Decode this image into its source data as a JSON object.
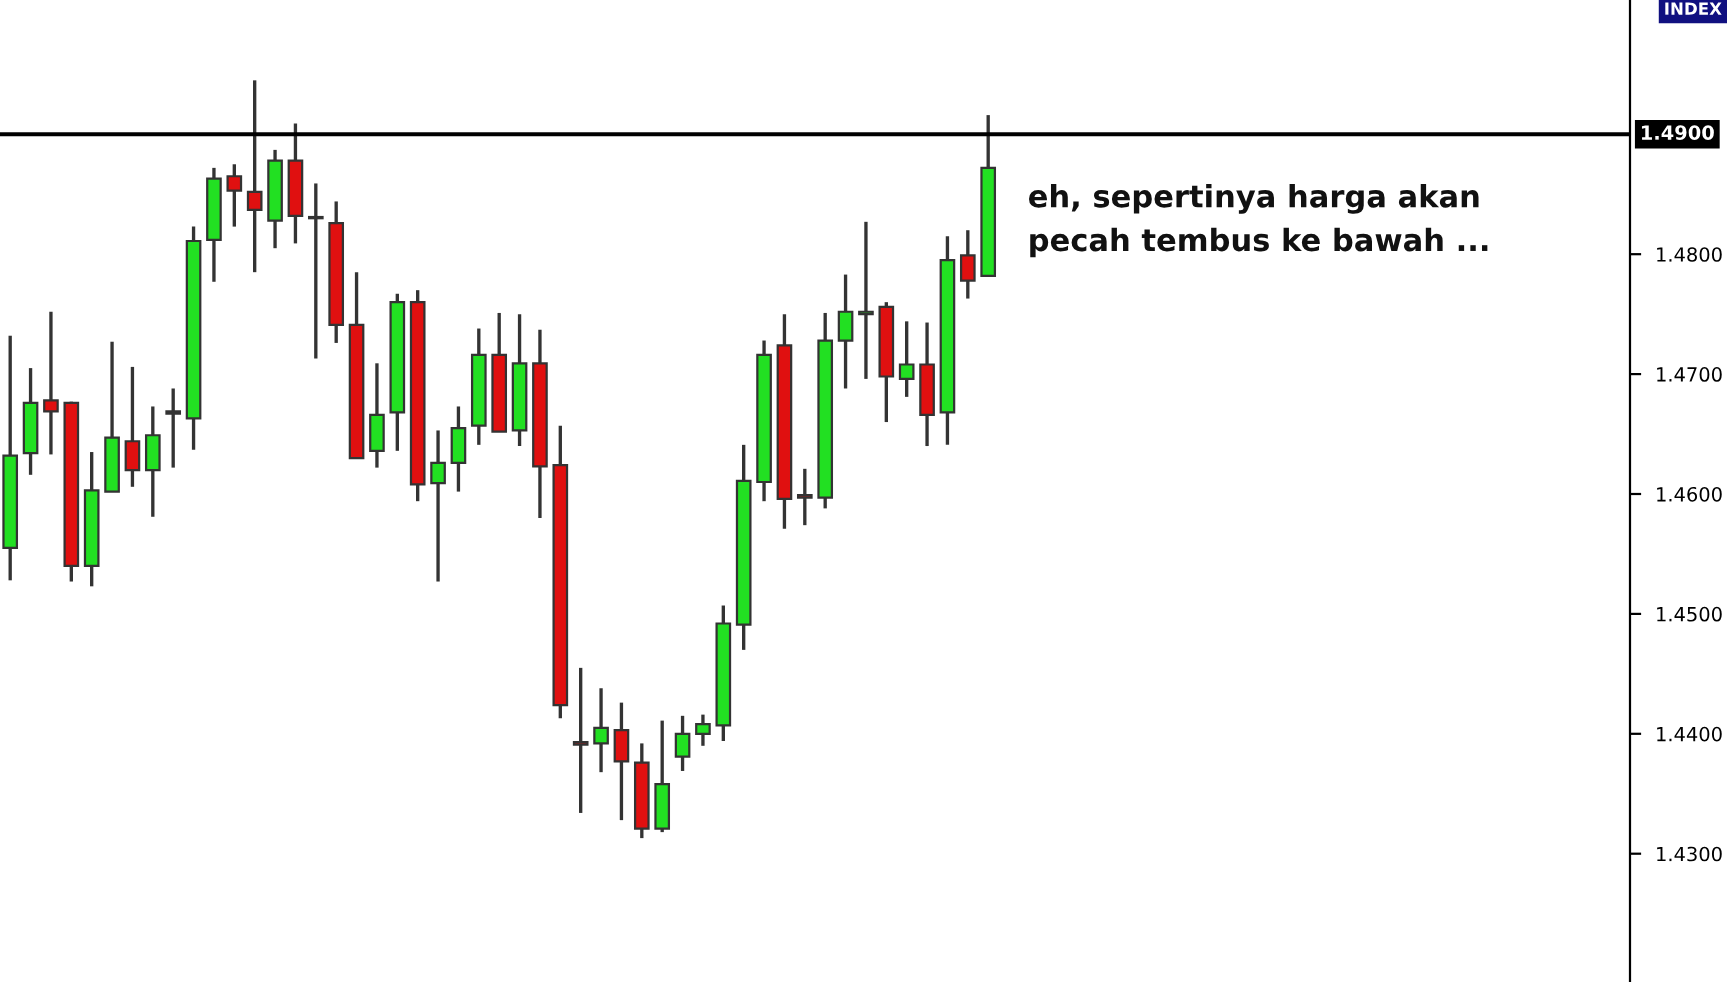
{
  "chart_data": {
    "type": "candlestick",
    "categories": [
      null,
      null,
      null,
      null,
      null,
      null,
      null,
      null,
      null,
      null,
      null,
      null,
      null,
      null,
      null,
      null,
      null,
      null,
      null,
      null,
      null,
      null,
      null,
      null,
      null,
      null,
      null,
      null,
      null,
      null,
      null,
      null,
      null,
      null,
      null,
      null,
      null,
      null,
      null,
      null,
      null,
      null,
      null,
      null,
      null,
      null,
      null,
      null,
      null,
      null,
      null,
      null,
      null,
      null,
      null,
      null,
      null,
      null,
      null,
      null,
      null,
      null,
      null,
      null,
      null,
      null,
      null,
      null,
      null,
      null,
      null,
      null,
      null,
      null,
      null,
      null,
      null,
      null,
      null,
      null
    ],
    "ohlc": [
      [
        1.4555,
        1.4732,
        1.4528,
        1.4632
      ],
      [
        1.4634,
        1.4705,
        1.4616,
        1.4676
      ],
      [
        1.4678,
        1.4752,
        1.4633,
        1.4669
      ],
      [
        1.4676,
        1.4677,
        1.4527,
        1.454
      ],
      [
        1.454,
        1.4635,
        1.4523,
        1.4603
      ],
      [
        1.4602,
        1.4727,
        1.4602,
        1.4647
      ],
      [
        1.4644,
        1.4706,
        1.4606,
        1.462
      ],
      [
        1.462,
        1.4673,
        1.4581,
        1.4649
      ],
      [
        1.4669,
        1.4688,
        1.4622,
        1.4667
      ],
      [
        1.4663,
        1.4823,
        1.4637,
        1.4811
      ],
      [
        1.4812,
        1.4872,
        1.4777,
        1.4863
      ],
      [
        1.4865,
        1.4875,
        1.4823,
        1.4853
      ],
      [
        1.4852,
        1.4945,
        1.4785,
        1.4837
      ],
      [
        1.4828,
        1.4887,
        1.4805,
        1.4878
      ],
      [
        1.4878,
        1.4909,
        1.4809,
        1.4832
      ],
      [
        1.4831,
        1.4859,
        1.4713,
        1.483
      ],
      [
        1.4826,
        1.4844,
        1.4726,
        1.4741
      ],
      [
        1.4741,
        1.4785,
        1.463,
        1.463
      ],
      [
        1.4636,
        1.4709,
        1.4622,
        1.4666
      ],
      [
        1.4668,
        1.4767,
        1.4636,
        1.476
      ],
      [
        1.476,
        1.477,
        1.4594,
        1.4608
      ],
      [
        1.4609,
        1.4653,
        1.4527,
        1.4626
      ],
      [
        1.4626,
        1.4673,
        1.4602,
        1.4655
      ],
      [
        1.4657,
        1.4738,
        1.4641,
        1.4716
      ],
      [
        1.4716,
        1.4751,
        1.4652,
        1.4652
      ],
      [
        1.4653,
        1.475,
        1.464,
        1.4709
      ],
      [
        1.4709,
        1.4737,
        1.458,
        1.4623
      ],
      [
        1.4624,
        1.4657,
        1.4413,
        1.4424
      ],
      [
        1.4393,
        1.4455,
        1.4334,
        1.4391
      ],
      [
        1.4392,
        1.4438,
        1.4368,
        1.4405
      ],
      [
        1.4403,
        1.4426,
        1.4328,
        1.4377
      ],
      [
        1.4376,
        1.4392,
        1.4313,
        1.4321
      ],
      [
        1.4321,
        1.4411,
        1.4318,
        1.4358
      ],
      [
        1.4381,
        1.4415,
        1.4369,
        1.44
      ],
      [
        1.44,
        1.4416,
        1.439,
        1.4408
      ],
      [
        1.4407,
        1.4507,
        1.4394,
        1.4492
      ],
      [
        1.4491,
        1.4641,
        1.447,
        1.4611
      ],
      [
        1.461,
        1.4728,
        1.4594,
        1.4716
      ],
      [
        1.4724,
        1.475,
        1.4571,
        1.4596
      ],
      [
        1.4599,
        1.4621,
        1.4574,
        1.4597
      ],
      [
        1.4597,
        1.4751,
        1.4588,
        1.4728
      ],
      [
        1.4728,
        1.4783,
        1.4688,
        1.4752
      ],
      [
        1.475,
        1.4827,
        1.4696,
        1.4752
      ],
      [
        1.4756,
        1.476,
        1.466,
        1.4698
      ],
      [
        1.4696,
        1.4744,
        1.4681,
        1.4708
      ],
      [
        1.4708,
        1.4743,
        1.464,
        1.4666
      ],
      [
        1.4668,
        1.4815,
        1.4641,
        1.4795
      ],
      [
        1.4799,
        1.482,
        1.4763,
        1.4778
      ],
      [
        1.4782,
        1.4916,
        1.4782,
        1.4872
      ],
      null,
      null,
      null,
      null,
      null,
      null,
      null,
      null,
      null,
      null,
      null,
      null,
      null,
      null,
      null,
      null,
      null,
      null,
      null,
      null,
      null,
      null,
      null,
      null,
      null,
      null,
      null,
      null,
      null,
      null,
      null
    ],
    "colors": [
      "#22e022",
      "#22e022",
      "#e01010",
      "#e01010",
      "#22e022",
      "#22e022",
      "#e01010",
      "#22e022",
      "#e01010",
      "#22e022",
      "#22e022",
      "#e01010",
      "#e01010",
      "#22e022",
      "#e01010",
      "#e01010",
      "#e01010",
      "#e01010",
      "#22e022",
      "#22e022",
      "#e01010",
      "#22e022",
      "#22e022",
      "#22e022",
      "#e01010",
      "#22e022",
      "#e01010",
      "#e01010",
      "#e01010",
      "#22e022",
      "#e01010",
      "#e01010",
      "#22e022",
      "#22e022",
      "#22e022",
      "#22e022",
      "#22e022",
      "#22e022",
      "#e01010",
      "#e01010",
      "#22e022",
      "#22e022",
      "#22e022",
      "#e01010",
      "#22e022",
      "#e01010",
      "#22e022",
      "#e01010",
      "#22e022",
      null,
      null,
      null,
      null,
      null,
      null,
      null,
      null,
      null,
      null,
      null,
      null,
      null,
      null,
      null,
      null,
      null,
      null,
      null,
      null,
      null,
      null,
      null,
      null,
      null,
      null,
      null,
      null,
      null,
      null,
      null
    ],
    "ylim": [
      1.4193,
      1.5012
    ],
    "yticks": [
      {
        "value": 1.43,
        "label": "1.4300"
      },
      {
        "value": 1.44,
        "label": "1.4400"
      },
      {
        "value": 1.45,
        "label": "1.4500"
      },
      {
        "value": 1.46,
        "label": "1.4600"
      },
      {
        "value": 1.47,
        "label": "1.4700"
      },
      {
        "value": 1.48,
        "label": "1.4800"
      }
    ],
    "ref_lines": [
      {
        "axis": "y",
        "value": 1.49,
        "label": "1.4900",
        "color": "#000000"
      }
    ],
    "annotations": [
      "eh, sepertinya harga akan\npecah tembus ke bawah ...",
      "INDEX"
    ],
    "grid": false,
    "legend": false
  }
}
